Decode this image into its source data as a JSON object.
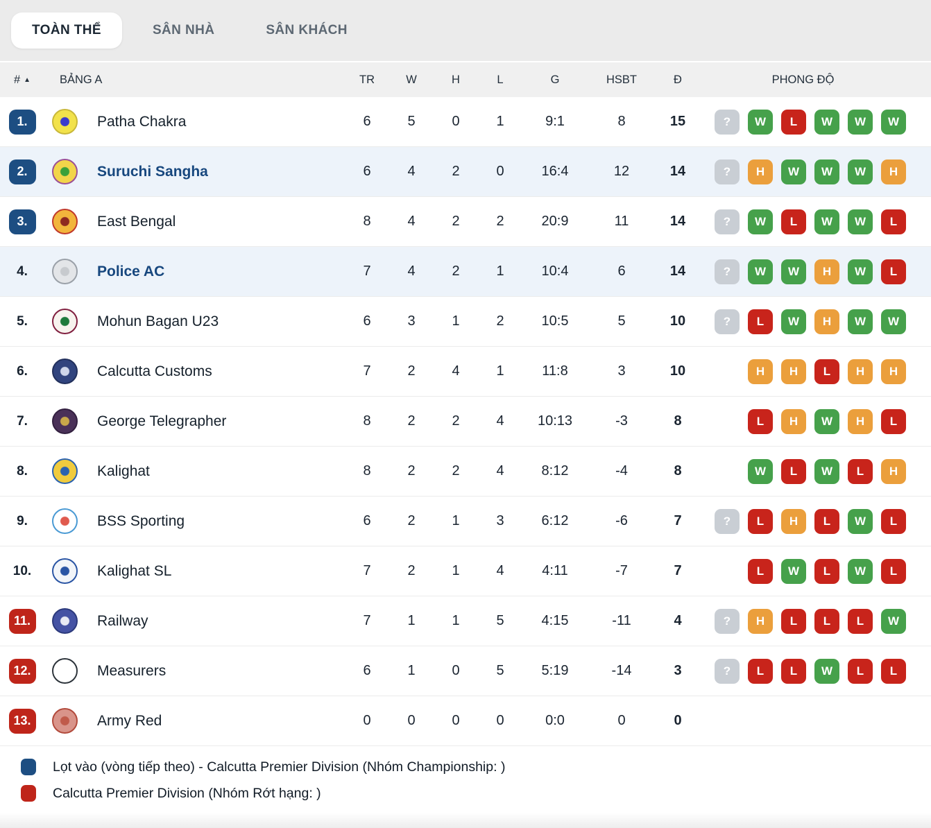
{
  "tabs": [
    {
      "label": "TOÀN THỂ",
      "active": true
    },
    {
      "label": "SÂN NHÀ",
      "active": false
    },
    {
      "label": "SÂN KHÁCH",
      "active": false
    }
  ],
  "table": {
    "headers": {
      "rank": "#",
      "sort_icon": "▲",
      "group": "BẢNG A",
      "tr": "TR",
      "w": "W",
      "h": "H",
      "l": "L",
      "g": "G",
      "hsbt": "HSBT",
      "d": "Đ",
      "form": "PHONG ĐỘ"
    },
    "rows": [
      {
        "rank": "1.",
        "rank_style": "promotion",
        "team": "Patha Chakra",
        "highlighted": false,
        "tr": "6",
        "w": "5",
        "h": "0",
        "l": "1",
        "g": "9:1",
        "hsbt": "8",
        "d": "15",
        "form": [
          "?",
          "W",
          "L",
          "W",
          "W",
          "W"
        ],
        "logo": {
          "bg": "#f2e24b",
          "ring": "#c9b83a",
          "dot": "#3a3acc"
        }
      },
      {
        "rank": "2.",
        "rank_style": "promotion",
        "team": "Suruchi Sangha",
        "highlighted": true,
        "tr": "6",
        "w": "4",
        "h": "2",
        "l": "0",
        "g": "16:4",
        "hsbt": "12",
        "d": "14",
        "form": [
          "?",
          "H",
          "W",
          "W",
          "W",
          "H"
        ],
        "logo": {
          "bg": "#f2d54a",
          "ring": "#9b4f96",
          "dot": "#3aa03a"
        }
      },
      {
        "rank": "3.",
        "rank_style": "promotion",
        "team": "East Bengal",
        "highlighted": false,
        "tr": "8",
        "w": "4",
        "h": "2",
        "l": "2",
        "g": "20:9",
        "hsbt": "11",
        "d": "14",
        "form": [
          "?",
          "W",
          "L",
          "W",
          "W",
          "L"
        ],
        "logo": {
          "bg": "#f2b53c",
          "ring": "#c0392b",
          "dot": "#8e2820"
        }
      },
      {
        "rank": "4.",
        "rank_style": "none",
        "team": "Police AC",
        "highlighted": true,
        "tr": "7",
        "w": "4",
        "h": "2",
        "l": "1",
        "g": "10:4",
        "hsbt": "6",
        "d": "14",
        "form": [
          "?",
          "W",
          "W",
          "H",
          "W",
          "L"
        ],
        "logo": {
          "bg": "#e3e5e8",
          "ring": "#9aa0a8",
          "dot": "#c7cace"
        }
      },
      {
        "rank": "5.",
        "rank_style": "none",
        "team": "Mohun Bagan U23",
        "highlighted": false,
        "tr": "6",
        "w": "3",
        "h": "1",
        "l": "2",
        "g": "10:5",
        "hsbt": "5",
        "d": "10",
        "form": [
          "?",
          "L",
          "W",
          "H",
          "W",
          "W"
        ],
        "logo": {
          "bg": "#f7f3ee",
          "ring": "#801f3f",
          "dot": "#1e7a3c"
        }
      },
      {
        "rank": "6.",
        "rank_style": "none",
        "team": "Calcutta Customs",
        "highlighted": false,
        "tr": "7",
        "w": "2",
        "h": "4",
        "l": "1",
        "g": "11:8",
        "hsbt": "3",
        "d": "10",
        "form": [
          "H",
          "H",
          "L",
          "H",
          "H"
        ],
        "logo": {
          "bg": "#31447e",
          "ring": "#22305c",
          "dot": "#cfd6ea"
        }
      },
      {
        "rank": "7.",
        "rank_style": "none",
        "team": "George Telegrapher",
        "highlighted": false,
        "tr": "8",
        "w": "2",
        "h": "2",
        "l": "4",
        "g": "10:13",
        "hsbt": "-3",
        "d": "8",
        "form": [
          "L",
          "H",
          "W",
          "H",
          "L"
        ],
        "logo": {
          "bg": "#4a3158",
          "ring": "#332040",
          "dot": "#c9a84a"
        }
      },
      {
        "rank": "8.",
        "rank_style": "none",
        "team": "Kalighat",
        "highlighted": false,
        "tr": "8",
        "w": "2",
        "h": "2",
        "l": "4",
        "g": "8:12",
        "hsbt": "-4",
        "d": "8",
        "form": [
          "W",
          "L",
          "W",
          "L",
          "H"
        ],
        "logo": {
          "bg": "#f0cb3e",
          "ring": "#2a62b0",
          "dot": "#2a62b0"
        }
      },
      {
        "rank": "9.",
        "rank_style": "none",
        "team": "BSS Sporting",
        "highlighted": false,
        "tr": "6",
        "w": "2",
        "h": "1",
        "l": "3",
        "g": "6:12",
        "hsbt": "-6",
        "d": "7",
        "form": [
          "?",
          "L",
          "H",
          "L",
          "W",
          "L"
        ],
        "logo": {
          "bg": "#ffffff",
          "ring": "#4a9ad4",
          "dot": "#e05a4e"
        }
      },
      {
        "rank": "10.",
        "rank_style": "none",
        "team": "Kalighat SL",
        "highlighted": false,
        "tr": "7",
        "w": "2",
        "h": "1",
        "l": "4",
        "g": "4:11",
        "hsbt": "-7",
        "d": "7",
        "form": [
          "L",
          "W",
          "L",
          "W",
          "L"
        ],
        "logo": {
          "bg": "#f2f5f9",
          "ring": "#2a55a4",
          "dot": "#2a55a4"
        }
      },
      {
        "rank": "11.",
        "rank_style": "relegation",
        "team": "Railway",
        "highlighted": false,
        "tr": "7",
        "w": "1",
        "h": "1",
        "l": "5",
        "g": "4:15",
        "hsbt": "-11",
        "d": "4",
        "form": [
          "?",
          "H",
          "L",
          "L",
          "L",
          "W"
        ],
        "logo": {
          "bg": "#4553a4",
          "ring": "#2c3a7c",
          "dot": "#e8eaf4"
        }
      },
      {
        "rank": "12.",
        "rank_style": "relegation",
        "team": "Measurers",
        "highlighted": false,
        "tr": "6",
        "w": "1",
        "h": "0",
        "l": "5",
        "g": "5:19",
        "hsbt": "-14",
        "d": "3",
        "form": [
          "?",
          "L",
          "L",
          "W",
          "L",
          "L"
        ],
        "logo": {
          "bg": "#ffffff",
          "ring": "#2d343b",
          "dot": "#ffffff"
        }
      },
      {
        "rank": "13.",
        "rank_style": "relegation",
        "team": "Army Red",
        "highlighted": false,
        "tr": "0",
        "w": "0",
        "h": "0",
        "l": "0",
        "g": "0:0",
        "hsbt": "0",
        "d": "0",
        "form": [],
        "logo": {
          "bg": "#d9948a",
          "ring": "#b24a3c",
          "dot": "#c05a4a"
        }
      }
    ]
  },
  "legend": [
    {
      "color": "#1d4e82",
      "text": "Lọt vào (vòng tiếp theo) - Calcutta Premier Division (Nhóm Championship: )"
    },
    {
      "color": "#bf251a",
      "text": "Calcutta Premier Division (Nhóm Rớt hạng: )"
    }
  ],
  "colors": {
    "form_win": "#46a14b",
    "form_loss": "#c8241b",
    "form_draw": "#eb9f3c",
    "form_unknown": "#c9ced4",
    "promotion_badge": "#1d4e82",
    "relegation_badge": "#bf251a",
    "highlight_row_bg": "#edf3fa",
    "tabbar_bg": "#ebebeb"
  }
}
